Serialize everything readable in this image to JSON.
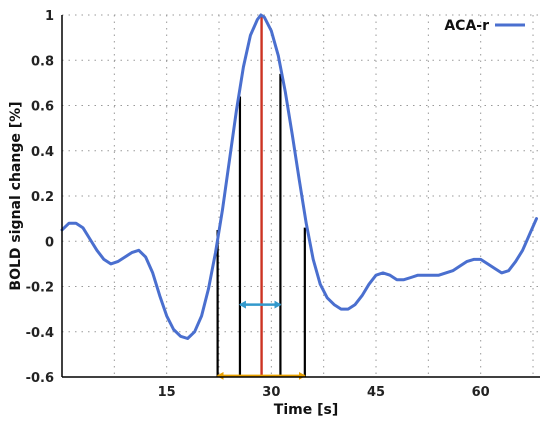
{
  "chart_data": {
    "type": "line",
    "xlabel": "Time [s]",
    "ylabel": "BOLD signal change [%]",
    "xlim": [
      0,
      68.5
    ],
    "ylim": [
      -0.6,
      1.0
    ],
    "xticks": [
      15,
      30,
      45,
      60
    ],
    "yticks": [
      -0.6,
      -0.4,
      -0.2,
      0,
      0.2,
      0.4,
      0.6,
      0.8,
      1
    ],
    "ytick_labels": [
      "-0.6",
      "-0.4",
      "-0.2",
      "0",
      "0.2",
      "0.4",
      "0.6",
      "0.8",
      "1"
    ],
    "xgrid_at": [
      7.5,
      15,
      22.5,
      30,
      37.5,
      45,
      52.5,
      60,
      67.5
    ],
    "grid": true,
    "legend": "top-right",
    "series": [
      {
        "name": "ACA-r",
        "color": "#4a6fcf",
        "x": [
          0,
          1,
          2,
          3,
          4,
          5,
          6,
          7,
          8,
          9,
          10,
          11,
          12,
          13,
          14,
          15,
          16,
          17,
          18,
          19,
          20,
          21,
          22,
          23,
          24,
          25,
          26,
          27,
          28,
          28.5,
          29,
          30,
          31,
          32,
          33,
          34,
          35,
          36,
          37,
          38,
          39,
          40,
          41,
          42,
          43,
          44,
          45,
          46,
          47,
          48,
          49,
          50,
          51,
          52,
          53,
          54,
          55,
          56,
          57,
          58,
          59,
          60,
          61,
          62,
          63,
          64,
          65,
          66,
          67,
          68
        ],
        "y": [
          0.05,
          0.08,
          0.08,
          0.06,
          0.01,
          -0.04,
          -0.08,
          -0.1,
          -0.09,
          -0.07,
          -0.05,
          -0.04,
          -0.07,
          -0.14,
          -0.24,
          -0.33,
          -0.39,
          -0.42,
          -0.43,
          -0.4,
          -0.33,
          -0.21,
          -0.05,
          0.14,
          0.36,
          0.58,
          0.77,
          0.91,
          0.98,
          1.0,
          0.99,
          0.93,
          0.82,
          0.66,
          0.47,
          0.27,
          0.08,
          -0.08,
          -0.19,
          -0.25,
          -0.28,
          -0.3,
          -0.3,
          -0.28,
          -0.24,
          -0.19,
          -0.15,
          -0.14,
          -0.15,
          -0.17,
          -0.17,
          -0.16,
          -0.15,
          -0.15,
          -0.15,
          -0.15,
          -0.14,
          -0.13,
          -0.11,
          -0.09,
          -0.08,
          -0.08,
          -0.1,
          -0.12,
          -0.14,
          -0.13,
          -0.09,
          -0.04,
          0.03,
          0.1
        ]
      }
    ],
    "peak_line": {
      "x": 28.6,
      "y_top": 1.0,
      "color": "#cc3322"
    },
    "width_lines": [
      {
        "x": 22.3,
        "y_top": 0.05,
        "color": "#000000"
      },
      {
        "x": 25.5,
        "y_top": 0.64,
        "color": "#000000"
      },
      {
        "x": 31.3,
        "y_top": 0.74,
        "color": "#000000"
      },
      {
        "x": 34.8,
        "y_top": 0.06,
        "color": "#000000"
      }
    ],
    "arrows": [
      {
        "x1": 25.5,
        "x2": 31.3,
        "y": -0.28,
        "color": "#3399cc"
      },
      {
        "x1": 22.3,
        "x2": 34.8,
        "y": -0.595,
        "color": "#e8a000"
      }
    ]
  }
}
